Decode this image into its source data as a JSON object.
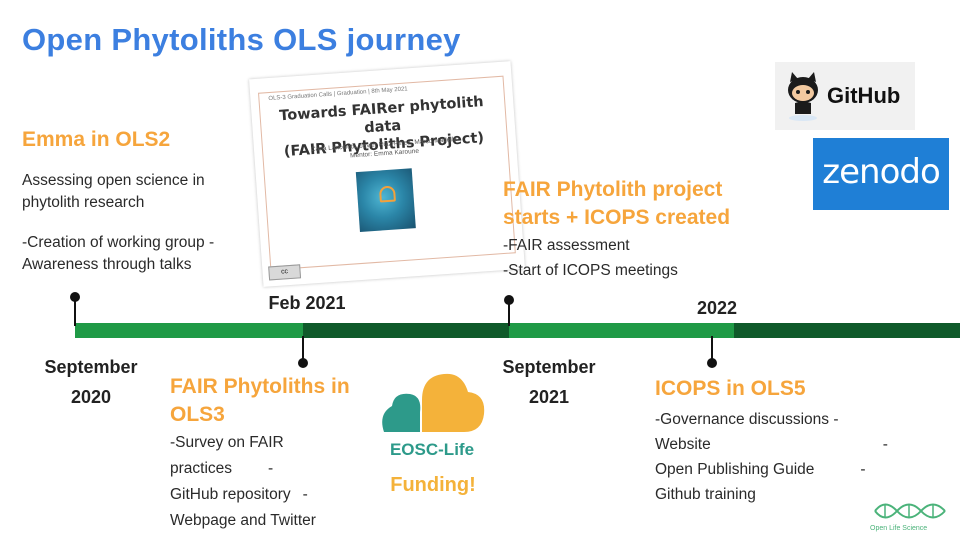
{
  "title": "Open Phytoliths OLS journey",
  "colors": {
    "title_blue": "#3c7fe0",
    "heading_orange": "#f6a53c",
    "timeline_light_green": "#1f9a46",
    "timeline_dark_green": "#0f5a2a",
    "zenodo_blue": "#1f7fd6",
    "eosc_teal": "#2d9a8a",
    "funding_yellow": "#f4b23a"
  },
  "milestones": {
    "emma": {
      "heading": "Emma in OLS2",
      "lines": [
        "Assessing open science in",
        "phytolith research",
        "-Creation of working group -",
        "Awareness through talks"
      ]
    },
    "ols3": {
      "heading_lines": [
        "FAIR Phytoliths in",
        "OLS3"
      ],
      "lines": [
        "-Survey on FAIR",
        "practices",
        "-",
        "GitHub repository",
        "-",
        "Webpage and Twitter"
      ]
    },
    "fair_project": {
      "heading_lines": [
        "FAIR Phytolith project",
        "starts + ICOPS created"
      ],
      "lines": [
        "-FAIR assessment",
        "-Start of ICOPS meetings"
      ]
    },
    "ols5": {
      "heading": "ICOPS in OLS5",
      "lines": [
        "-Governance discussions -",
        "Website",
        "-",
        "Open Publishing Guide",
        "-",
        "Github training"
      ]
    }
  },
  "dates": {
    "sep2020": [
      "September",
      "2020"
    ],
    "feb2021": "Feb 2021",
    "sep2021": [
      "September",
      "2021"
    ],
    "y2022": "2022"
  },
  "slide": {
    "meta": "OLS-3 Graduation Calls | Graduation | 8th May 2021",
    "title_lines": [
      "Towards FAIRer phytolith data",
      "(FAIR Phytoliths Project)"
    ],
    "authors": [
      "Carla Lancelotti, Javier Ruiz-Pérez, Marco Madella",
      "Mentor: Emma Karoune"
    ],
    "cc": "cc"
  },
  "logos": {
    "github": "GitHub",
    "zenodo": "zenodo",
    "eosc": "EOSC-Life",
    "funding": "Funding!",
    "ols": "Open Life Science"
  }
}
